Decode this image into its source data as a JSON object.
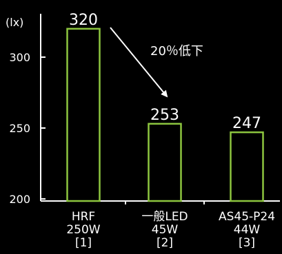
{
  "chart_data": {
    "type": "bar",
    "ylabel": "(lx)",
    "ylim": [
      200,
      330
    ],
    "yticks": [
      200,
      250,
      300
    ],
    "categories": [
      {
        "name": "HRF",
        "spec": "250W",
        "ref": "[1]"
      },
      {
        "name": "一般LED",
        "spec": "45W",
        "ref": "[2]"
      },
      {
        "name": "AS45-P24",
        "spec": "44W",
        "ref": "[3]"
      }
    ],
    "values": [
      320,
      253,
      247
    ],
    "data_labels": [
      "320",
      "253",
      "247"
    ],
    "annotation": "20％低下",
    "grid": false,
    "colors": {
      "bar_stroke": "#8DC63F",
      "background": "#000000",
      "text": "#FFFFFF",
      "axis": "#FFFFFF"
    }
  }
}
